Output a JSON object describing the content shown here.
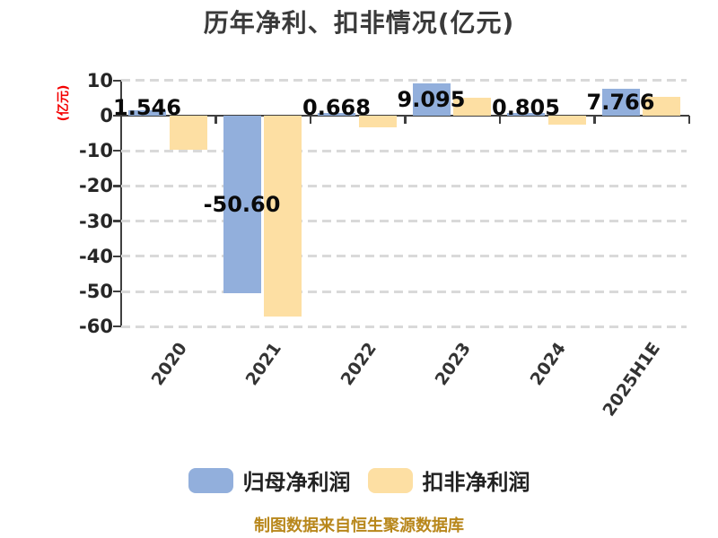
{
  "title": "历年净利、扣非情况(亿元)",
  "y_axis_title": "(亿元)",
  "source_note": "制图数据来自恒生聚源数据库",
  "legend": {
    "items": [
      {
        "label": "归母净利润",
        "color": "#92AFDC"
      },
      {
        "label": "扣非净利润",
        "color": "#FDDFA3"
      }
    ]
  },
  "colors": {
    "bar_blue": "#92AFDC",
    "bar_yellow": "#FDDFA3",
    "axis": "#3F3F3F",
    "gridline": "#D9D9D9",
    "title_text": "#3A3A3A",
    "tick_text": "#262626",
    "bar_label_text": "#0A0A0A",
    "y_axis_title_text": "#F40000",
    "source_text": "#B8871B",
    "background": "#FFFFFF"
  },
  "chart_data": {
    "type": "bar",
    "title": "历年净利、扣非情况(亿元)",
    "ylabel": "(亿元)",
    "categories": [
      "2020",
      "2021",
      "2022",
      "2023",
      "2024",
      "2025H1E"
    ],
    "series": [
      {
        "name": "归母净利润",
        "color": "#92AFDC",
        "values": [
          1.546,
          -50.6,
          0.668,
          9.095,
          0.805,
          7.766
        ],
        "value_labels": [
          "1.546",
          "-50.60",
          "0.668",
          "9.095",
          "0.805",
          "7.766"
        ]
      },
      {
        "name": "扣非净利润",
        "color": "#FDDFA3",
        "values": [
          -9.8,
          -57.2,
          -3.4,
          5.1,
          -2.6,
          5.3
        ],
        "value_labels": null
      }
    ],
    "y_ticks": [
      10,
      0,
      -10,
      -20,
      -30,
      -40,
      -50,
      -60
    ],
    "ylim": [
      -62,
      12
    ],
    "grid": "horizontal-dashed",
    "legend_position": "bottom"
  }
}
